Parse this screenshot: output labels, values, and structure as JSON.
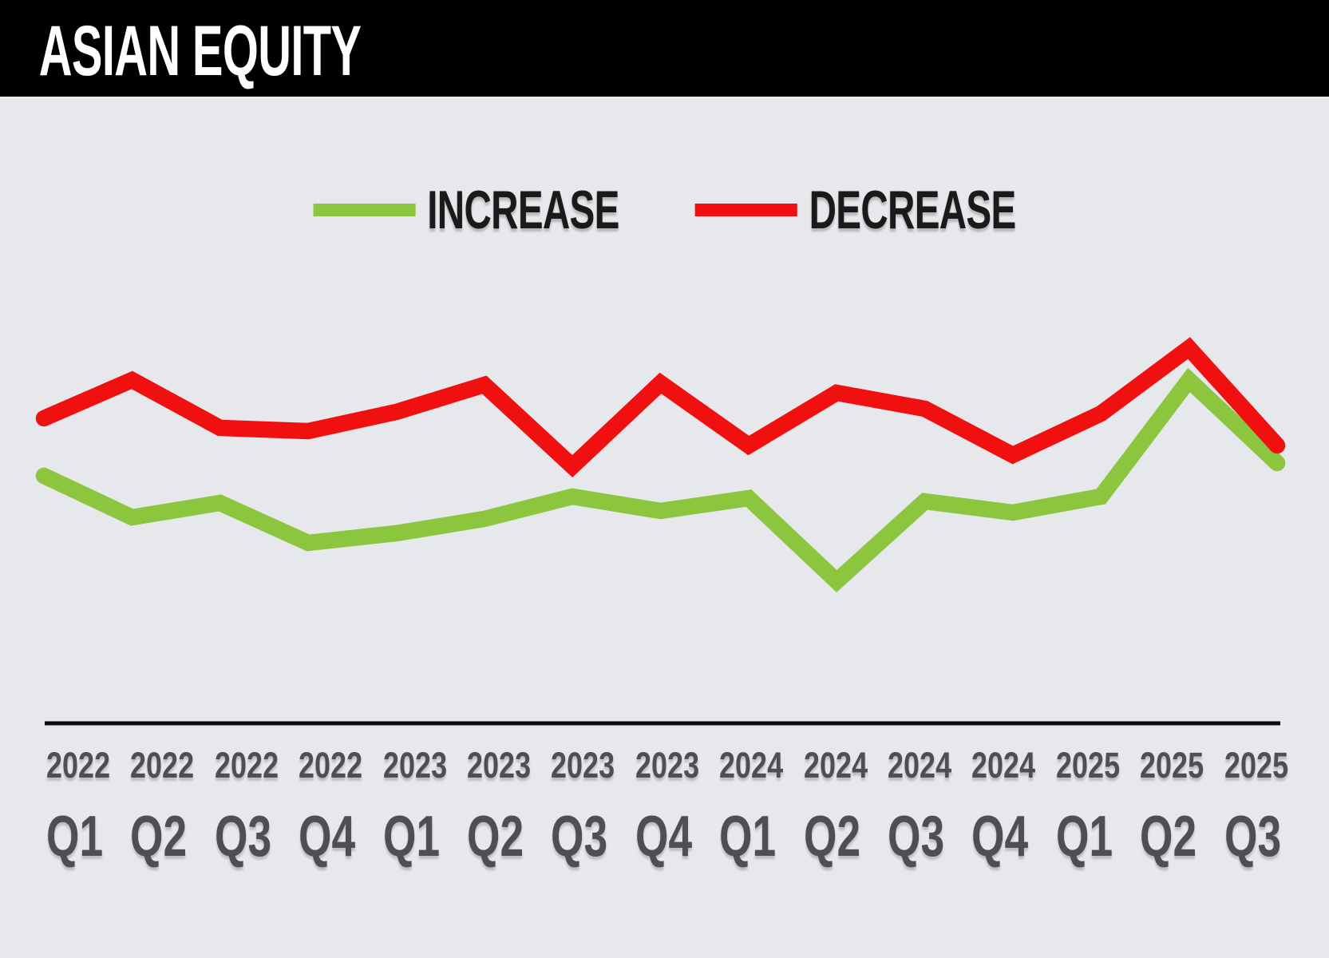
{
  "header": {
    "title": "ASIAN EQUITY"
  },
  "legend": [
    {
      "label": "INCREASE",
      "color": "#8CC63F"
    },
    {
      "label": "DECREASE",
      "color": "#F01010"
    }
  ],
  "chart_data": {
    "type": "line",
    "title": "ASIAN EQUITY",
    "x_labels": [
      {
        "year": "2022",
        "quarter": "Q1"
      },
      {
        "year": "2022",
        "quarter": "Q2"
      },
      {
        "year": "2022",
        "quarter": "Q3"
      },
      {
        "year": "2022",
        "quarter": "Q4"
      },
      {
        "year": "2023",
        "quarter": "Q1"
      },
      {
        "year": "2023",
        "quarter": "Q2"
      },
      {
        "year": "2023",
        "quarter": "Q3"
      },
      {
        "year": "2023",
        "quarter": "Q4"
      },
      {
        "year": "2024",
        "quarter": "Q1"
      },
      {
        "year": "2024",
        "quarter": "Q2"
      },
      {
        "year": "2024",
        "quarter": "Q3"
      },
      {
        "year": "2024",
        "quarter": "Q4"
      },
      {
        "year": "2025",
        "quarter": "Q1"
      },
      {
        "year": "2025",
        "quarter": "Q2"
      },
      {
        "year": "2025",
        "quarter": "Q3"
      }
    ],
    "series": [
      {
        "name": "INCREASE",
        "color": "#8CC63F",
        "values": [
          46,
          33,
          37.5,
          25,
          28,
          32.5,
          39.5,
          35,
          39,
          13,
          38,
          34.5,
          39.5,
          76,
          50
        ]
      },
      {
        "name": "DECREASE",
        "color": "#F01010",
        "values": [
          64,
          76,
          61,
          60,
          66,
          74.5,
          49,
          75,
          55.5,
          72,
          67,
          52.5,
          65.5,
          86,
          55.5
        ]
      }
    ],
    "ylim": [
      0,
      100
    ],
    "y_axis_visible": false,
    "x_axis_line": true,
    "grid": false,
    "legend_position": "top-center",
    "note": "no numeric y-axis shown; values estimated on 0-100 scale from line positions"
  }
}
